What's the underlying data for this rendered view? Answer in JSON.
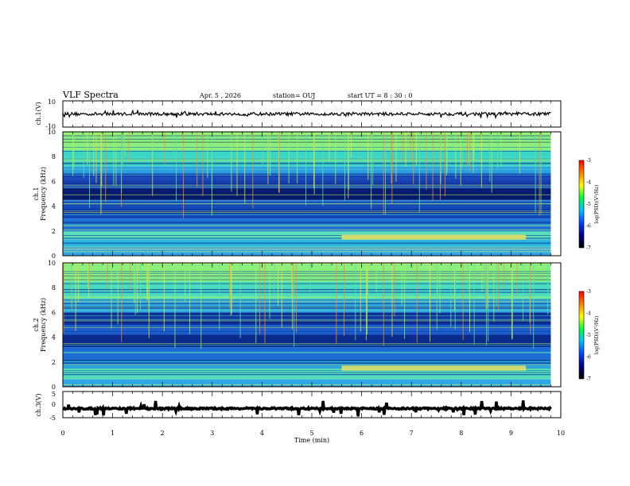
{
  "header": {
    "title": "VLF Spectra",
    "date": "Apr. 5 , 2026",
    "station": "station= OUJ",
    "start": "start  UT  =   8 : 30 : 0"
  },
  "chart_data": [
    {
      "type": "line",
      "name": "ch1-waveform",
      "ylabel": "ch.1(V)",
      "xlim": [
        0,
        10
      ],
      "ylim": [
        -10,
        10
      ],
      "yticks": [
        "10",
        "-10"
      ],
      "level": 0,
      "noise_amplitude": 1.2,
      "color": "#000000"
    },
    {
      "type": "heatmap",
      "name": "ch1-spectrogram",
      "ylabel_channel": "ch.1",
      "ylabel": "Frequency (kHz)",
      "xlim": [
        0,
        10
      ],
      "ylim": [
        0,
        10
      ],
      "yticks": [
        "0",
        "2",
        "4",
        "6",
        "8",
        "10"
      ],
      "bands": [
        {
          "from": 0.0,
          "to": 0.5,
          "color": "#31a0e6"
        },
        {
          "from": 0.5,
          "to": 0.7,
          "color": "#8fe6b0"
        },
        {
          "from": 0.7,
          "to": 1.3,
          "color": "#2bb6e0"
        },
        {
          "from": 1.3,
          "to": 2.0,
          "color": "#59e0b8"
        },
        {
          "from": 2.0,
          "to": 3.0,
          "color": "#1e73d6"
        },
        {
          "from": 3.0,
          "to": 4.0,
          "color": "#1247b8"
        },
        {
          "from": 4.0,
          "to": 4.5,
          "color": "#1a5fcc"
        },
        {
          "from": 4.5,
          "to": 5.5,
          "color": "#061a6e"
        },
        {
          "from": 5.5,
          "to": 6.5,
          "color": "#163fb0"
        },
        {
          "from": 6.5,
          "to": 7.2,
          "color": "#2a9ee0"
        },
        {
          "from": 7.2,
          "to": 8.5,
          "color": "#38d6c4"
        },
        {
          "from": 8.5,
          "to": 10.0,
          "color": "#8cf07a"
        }
      ]
    },
    {
      "type": "heatmap",
      "name": "ch2-spectrogram",
      "ylabel_channel": "ch.2",
      "ylabel": "Frequency (kHz)",
      "xlim": [
        0,
        10
      ],
      "ylim": [
        0,
        10
      ],
      "yticks": [
        "0",
        "2",
        "4",
        "6",
        "8",
        "10"
      ],
      "bands": [
        {
          "from": 0.0,
          "to": 0.6,
          "color": "#2fa8e6"
        },
        {
          "from": 0.6,
          "to": 1.5,
          "color": "#55dcb8"
        },
        {
          "from": 1.5,
          "to": 2.2,
          "color": "#2ab0e0"
        },
        {
          "from": 2.2,
          "to": 3.2,
          "color": "#1c6cd4"
        },
        {
          "from": 3.2,
          "to": 4.2,
          "color": "#0a2a8c"
        },
        {
          "from": 4.2,
          "to": 5.0,
          "color": "#1b5ccc"
        },
        {
          "from": 5.0,
          "to": 6.0,
          "color": "#0d2f98"
        },
        {
          "from": 6.0,
          "to": 7.0,
          "color": "#2ea8e0"
        },
        {
          "from": 7.0,
          "to": 8.5,
          "color": "#48dcc0"
        },
        {
          "from": 8.5,
          "to": 10.0,
          "color": "#8cf07a"
        }
      ]
    },
    {
      "type": "line",
      "name": "ch3-waveform",
      "ylabel": "ch.3(V)",
      "xlim": [
        0,
        10
      ],
      "ylim": [
        -5,
        5
      ],
      "yticks": [
        "5",
        "0",
        "-5"
      ],
      "level": -1.5,
      "noise_amplitude": 0.3,
      "color": "#000000"
    }
  ],
  "xaxis": {
    "label": "Time (min)",
    "ticks": [
      "0",
      "1",
      "2",
      "3",
      "4",
      "5",
      "6",
      "7",
      "8",
      "9",
      "10"
    ],
    "data_end": 9.8
  },
  "colorbar": {
    "label": "log(PSD)(V²/Hz)",
    "ticks": [
      "-3",
      "-4",
      "-5",
      "-6",
      "-7"
    ],
    "colors": [
      "#ff0000",
      "#ff8000",
      "#ffff00",
      "#00ff40",
      "#00c0ff",
      "#0040ff",
      "#000080",
      "#000000"
    ]
  }
}
